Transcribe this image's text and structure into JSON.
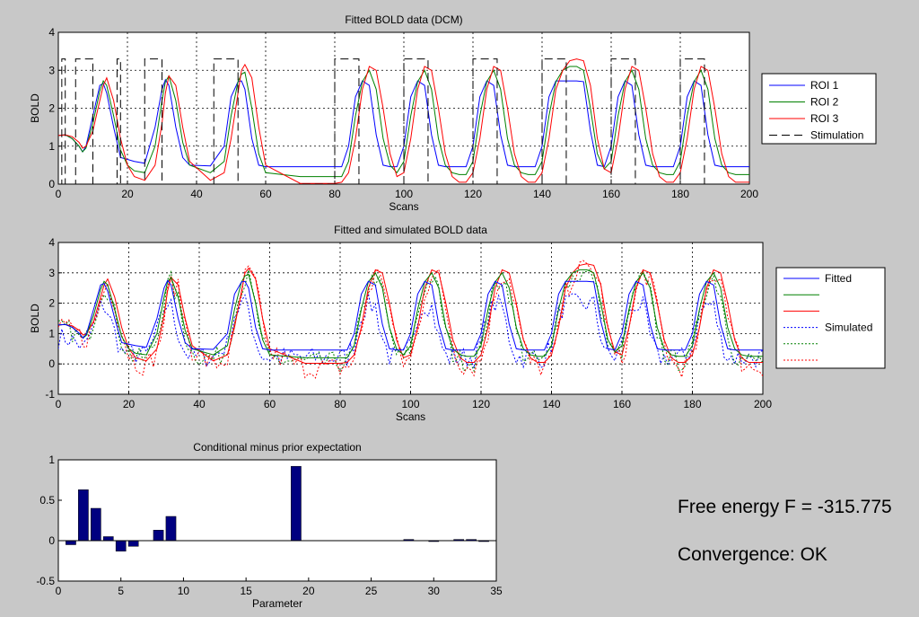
{
  "chart_data": [
    {
      "type": "line",
      "title": "Fitted BOLD data (DCM)",
      "xlabel": "Scans",
      "ylabel": "BOLD",
      "xlim": [
        0,
        200
      ],
      "ylim": [
        0,
        4
      ],
      "xticks": [
        0,
        20,
        40,
        60,
        80,
        100,
        120,
        140,
        160,
        180,
        200
      ],
      "yticks": [
        0,
        1,
        2,
        3,
        4
      ],
      "grid": true,
      "legend_position": "right",
      "series": [
        {
          "name": "ROI 1",
          "color": "#0000ff",
          "style": "solid",
          "x": [
            0,
            2,
            4,
            6,
            7,
            8,
            10,
            12,
            13,
            14,
            16,
            18,
            20,
            22,
            25,
            28,
            30,
            31,
            32,
            34,
            36,
            38,
            44,
            48,
            50,
            52,
            53,
            54,
            56,
            58,
            60,
            70,
            80,
            82,
            84,
            86,
            88,
            90,
            92,
            94,
            96,
            98,
            100,
            102,
            104,
            106,
            108,
            110,
            112,
            114,
            116,
            118,
            120,
            122,
            124,
            126,
            128,
            130,
            132,
            134,
            136,
            138,
            140,
            142,
            144,
            146,
            148,
            150,
            152,
            154,
            156,
            158,
            160,
            162,
            164,
            166,
            168,
            170,
            172,
            174,
            176,
            178,
            180,
            182,
            184,
            186,
            188,
            190,
            192,
            194,
            196,
            198,
            200
          ],
          "y": [
            1.28,
            1.3,
            1.2,
            1.0,
            0.85,
            1.0,
            1.8,
            2.6,
            2.65,
            2.4,
            1.5,
            0.7,
            0.65,
            0.6,
            0.55,
            1.5,
            2.5,
            2.75,
            2.6,
            1.5,
            0.7,
            0.5,
            0.48,
            1.0,
            2.3,
            2.7,
            2.72,
            2.5,
            1.2,
            0.5,
            0.46,
            0.46,
            0.46,
            0.46,
            1.0,
            2.3,
            2.72,
            2.6,
            1.3,
            0.5,
            0.46,
            0.46,
            1.0,
            2.3,
            2.72,
            2.6,
            1.3,
            0.5,
            0.46,
            0.46,
            0.46,
            0.46,
            1.0,
            2.3,
            2.72,
            2.6,
            1.3,
            0.5,
            0.46,
            0.46,
            0.46,
            0.46,
            1.0,
            2.3,
            2.72,
            2.72,
            2.72,
            2.72,
            2.7,
            1.4,
            0.5,
            0.46,
            1.0,
            2.3,
            2.72,
            2.6,
            1.3,
            0.5,
            0.46,
            0.46,
            0.46,
            0.46,
            1.0,
            2.3,
            2.72,
            2.6,
            1.3,
            0.5,
            0.46,
            0.46,
            0.46,
            0.46,
            0.46
          ]
        },
        {
          "name": "ROI 2",
          "color": "#008000",
          "style": "solid",
          "x": [
            0,
            2,
            4,
            6,
            7,
            8,
            10,
            12,
            13,
            14,
            16,
            18,
            20,
            22,
            25,
            28,
            30,
            31,
            32,
            34,
            36,
            38,
            44,
            48,
            50,
            52,
            53,
            54,
            56,
            58,
            60,
            70,
            80,
            82,
            84,
            86,
            88,
            90,
            92,
            94,
            96,
            98,
            100,
            102,
            104,
            106,
            108,
            110,
            112,
            114,
            116,
            118,
            120,
            122,
            124,
            126,
            128,
            130,
            132,
            134,
            136,
            138,
            140,
            142,
            144,
            146,
            148,
            150,
            152,
            154,
            156,
            158,
            160,
            162,
            164,
            166,
            168,
            170,
            172,
            174,
            176,
            178,
            180,
            182,
            184,
            186,
            188,
            190,
            192,
            194,
            196,
            198,
            200
          ],
          "y": [
            1.28,
            1.3,
            1.2,
            1.0,
            0.85,
            0.95,
            1.6,
            2.45,
            2.72,
            2.6,
            1.8,
            0.9,
            0.5,
            0.35,
            0.3,
            1.0,
            2.2,
            2.7,
            2.85,
            2.2,
            1.1,
            0.5,
            0.3,
            0.6,
            1.8,
            2.7,
            2.9,
            2.95,
            2.0,
            0.8,
            0.3,
            0.2,
            0.2,
            0.2,
            0.6,
            1.8,
            2.7,
            3.0,
            2.5,
            1.2,
            0.5,
            0.3,
            0.6,
            1.8,
            2.7,
            3.0,
            2.5,
            1.2,
            0.5,
            0.3,
            0.25,
            0.25,
            0.6,
            1.8,
            2.7,
            3.0,
            2.5,
            1.2,
            0.5,
            0.3,
            0.25,
            0.25,
            0.6,
            1.8,
            2.7,
            3.0,
            3.1,
            3.1,
            3.0,
            2.0,
            0.8,
            0.4,
            0.6,
            1.8,
            2.7,
            3.0,
            2.5,
            1.2,
            0.5,
            0.3,
            0.25,
            0.25,
            0.6,
            1.8,
            2.7,
            3.0,
            2.5,
            1.2,
            0.5,
            0.3,
            0.25,
            0.25,
            0.25
          ]
        },
        {
          "name": "ROI 3",
          "color": "#ff0000",
          "style": "solid",
          "x": [
            0,
            2,
            4,
            6,
            7,
            8,
            10,
            12,
            13,
            14,
            16,
            18,
            20,
            22,
            25,
            28,
            30,
            31,
            32,
            34,
            36,
            38,
            44,
            48,
            50,
            52,
            53,
            54,
            56,
            58,
            60,
            70,
            80,
            82,
            84,
            86,
            88,
            90,
            92,
            94,
            96,
            98,
            100,
            102,
            104,
            106,
            108,
            110,
            112,
            114,
            116,
            118,
            120,
            122,
            124,
            126,
            128,
            130,
            132,
            134,
            136,
            138,
            140,
            142,
            144,
            146,
            148,
            150,
            152,
            154,
            156,
            158,
            160,
            162,
            164,
            166,
            168,
            170,
            172,
            174,
            176,
            178,
            180,
            182,
            184,
            186,
            188,
            190,
            192,
            194,
            196,
            198,
            200
          ],
          "y": [
            1.28,
            1.3,
            1.25,
            1.1,
            0.95,
            1.0,
            1.4,
            2.2,
            2.6,
            2.8,
            2.2,
            1.2,
            0.5,
            0.2,
            0.1,
            0.5,
            1.6,
            2.4,
            2.85,
            2.6,
            1.5,
            0.6,
            0.1,
            0.3,
            1.2,
            2.4,
            3.0,
            3.15,
            2.8,
            1.5,
            0.5,
            0.02,
            0.02,
            0.05,
            0.3,
            1.2,
            2.5,
            3.1,
            3.0,
            2.0,
            0.8,
            0.2,
            0.3,
            1.2,
            2.5,
            3.1,
            3.0,
            2.0,
            0.8,
            0.2,
            0.05,
            0.05,
            0.3,
            1.2,
            2.5,
            3.1,
            3.0,
            2.0,
            0.8,
            0.2,
            0.05,
            0.05,
            0.3,
            1.2,
            2.5,
            3.0,
            3.25,
            3.3,
            3.25,
            2.6,
            1.2,
            0.4,
            0.3,
            1.2,
            2.5,
            3.1,
            3.0,
            2.0,
            0.8,
            0.2,
            0.05,
            0.05,
            0.3,
            1.2,
            2.5,
            3.1,
            3.0,
            2.0,
            0.8,
            0.2,
            0.05,
            0.05,
            0.05
          ]
        },
        {
          "name": "Stimulation",
          "color": "#000000",
          "style": "dashed",
          "step": true,
          "blocks": [
            [
              1,
              2
            ],
            [
              5,
              10
            ],
            [
              17,
              18
            ],
            [
              25,
              30
            ],
            [
              45,
              52
            ],
            [
              80,
              87
            ],
            [
              100,
              107
            ],
            [
              120,
              127
            ],
            [
              140,
              147
            ],
            [
              160,
              167
            ],
            [
              180,
              187
            ]
          ],
          "on": 3.3,
          "off": 0
        }
      ]
    },
    {
      "type": "line",
      "title": "Fitted and simulated BOLD data",
      "xlabel": "Scans",
      "ylabel": "BOLD",
      "xlim": [
        0,
        200
      ],
      "ylim": [
        -1,
        4
      ],
      "xticks": [
        0,
        20,
        40,
        60,
        80,
        100,
        120,
        140,
        160,
        180,
        200
      ],
      "yticks": [
        -1,
        0,
        1,
        2,
        3,
        4
      ],
      "grid": true,
      "legend_position": "right",
      "legend": [
        {
          "name": "Fitted",
          "color": "#0000ff",
          "style": "solid"
        },
        {
          "name": "",
          "color": "#008000",
          "style": "solid"
        },
        {
          "name": "",
          "color": "#ff0000",
          "style": "solid"
        },
        {
          "name": "Simulated",
          "color": "#0000ff",
          "style": "dotted"
        },
        {
          "name": "",
          "color": "#008000",
          "style": "dotted"
        },
        {
          "name": "",
          "color": "#ff0000",
          "style": "dotted"
        }
      ],
      "reuse_series_from": 0,
      "simulated_noise_amplitude": 0.35,
      "simulated_scale": 0.78
    },
    {
      "type": "bar",
      "title": "Conditional minus prior expectation",
      "xlabel": "Parameter",
      "ylabel": "",
      "xlim": [
        0,
        35
      ],
      "ylim": [
        -0.5,
        1
      ],
      "xticks": [
        0,
        5,
        10,
        15,
        20,
        25,
        30,
        35
      ],
      "yticks": [
        -0.5,
        0,
        0.5,
        1
      ],
      "yticklabels": [
        "-0.5",
        "0",
        "0.5",
        "1"
      ],
      "bar_color": "#000080",
      "categories": [
        1,
        2,
        3,
        4,
        5,
        6,
        7,
        8,
        9,
        10,
        11,
        12,
        13,
        14,
        15,
        16,
        17,
        18,
        19,
        20,
        21,
        22,
        23,
        24,
        25,
        26,
        27,
        28,
        29,
        30,
        31,
        32,
        33,
        34
      ],
      "values": [
        -0.05,
        0.63,
        0.4,
        0.05,
        -0.13,
        -0.07,
        0,
        0.13,
        0.3,
        0,
        0,
        0,
        0,
        0,
        0,
        0,
        0,
        0,
        0.92,
        0,
        0,
        0,
        0,
        0,
        0,
        0,
        0,
        0.015,
        0,
        -0.01,
        0,
        0.015,
        0.015,
        -0.01
      ]
    }
  ],
  "info": {
    "free_energy": "Free energy F = -315.775",
    "convergence": "Convergence: OK"
  }
}
